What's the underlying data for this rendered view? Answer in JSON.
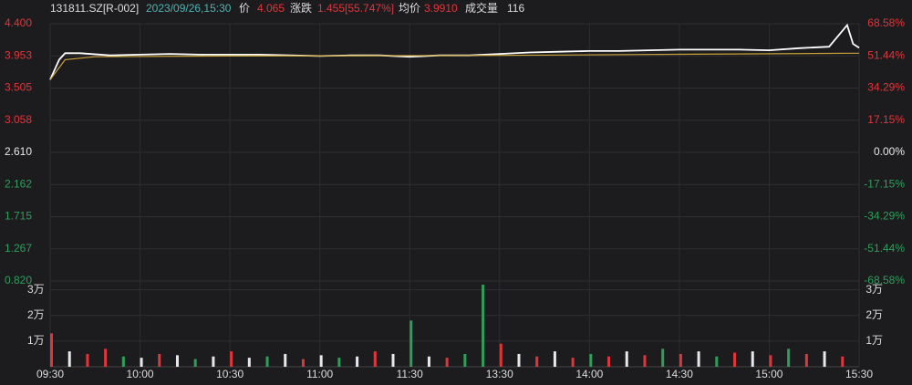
{
  "header": {
    "code": "131811.SZ[R-002]",
    "datetime": "2023/09/26,15:30",
    "price_label": "价",
    "price": "4.065",
    "change_label": "涨跌",
    "change": "1.455[55.747%]",
    "avg_label": "均价",
    "avg": "3.9910",
    "volume_label": "成交量",
    "volume": "116"
  },
  "chart_data": [
    {
      "type": "line",
      "xlim": [
        0,
        270
      ],
      "ylim": [
        0.82,
        4.4
      ],
      "yticks": [
        {
          "value": 4.4,
          "label": "4.400"
        },
        {
          "value": 3.953,
          "label": "3.953"
        },
        {
          "value": 3.505,
          "label": "3.505"
        },
        {
          "value": 3.058,
          "label": "3.058"
        },
        {
          "value": 2.61,
          "label": "2.610"
        },
        {
          "value": 2.162,
          "label": "2.162"
        },
        {
          "value": 1.715,
          "label": "1.715"
        },
        {
          "value": 1.267,
          "label": "1.267"
        },
        {
          "value": 0.82,
          "label": "0.820"
        }
      ],
      "y2lim": [
        -68.58,
        68.58
      ],
      "y2ticks": [
        {
          "value": 68.58,
          "label": "68.58%"
        },
        {
          "value": 51.44,
          "label": "51.44%"
        },
        {
          "value": 34.29,
          "label": "34.29%"
        },
        {
          "value": 17.15,
          "label": "17.15%"
        },
        {
          "value": 0,
          "label": "0.00%"
        },
        {
          "value": -17.15,
          "label": "-17.15%"
        },
        {
          "value": -34.29,
          "label": "-34.29%"
        },
        {
          "value": -51.44,
          "label": "-51.44%"
        },
        {
          "value": -68.58,
          "label": "-68.58%"
        }
      ],
      "grid": true,
      "series": [
        {
          "color": "#ffffff",
          "x": [
            0,
            3,
            5,
            10,
            20,
            30,
            40,
            50,
            60,
            70,
            80,
            90,
            100,
            110,
            120,
            130,
            140,
            150,
            160,
            170,
            180,
            190,
            200,
            210,
            220,
            230,
            240,
            250,
            260,
            266,
            268,
            270
          ],
          "values": [
            3.62,
            3.9,
            3.99,
            3.99,
            3.96,
            3.97,
            3.98,
            3.97,
            3.97,
            3.97,
            3.96,
            3.95,
            3.96,
            3.96,
            3.94,
            3.96,
            3.96,
            3.98,
            4.0,
            4.01,
            4.02,
            4.02,
            4.03,
            4.04,
            4.04,
            4.04,
            4.03,
            4.06,
            4.08,
            4.38,
            4.12,
            4.065
          ]
        },
        {
          "color": "#c9a23a",
          "x": [
            0,
            5,
            15,
            60,
            150,
            230,
            270
          ],
          "values": [
            3.62,
            3.9,
            3.94,
            3.95,
            3.96,
            3.98,
            3.99
          ]
        }
      ]
    },
    {
      "type": "bar",
      "xlim": [
        0,
        270
      ],
      "xticks": [
        {
          "value": 0,
          "label": "09:30"
        },
        {
          "value": 30,
          "label": "10:00"
        },
        {
          "value": 60,
          "label": "10:30"
        },
        {
          "value": 90,
          "label": "11:00"
        },
        {
          "value": 120,
          "label": "11:30"
        },
        {
          "value": 150,
          "label": "13:30"
        },
        {
          "value": 180,
          "label": "14:00"
        },
        {
          "value": 210,
          "label": "14:30"
        },
        {
          "value": 240,
          "label": "15:00"
        },
        {
          "value": 270,
          "label": "15:30"
        }
      ],
      "ylim": [
        0,
        32000
      ],
      "yticks": [
        {
          "value": 30000,
          "label": "3万"
        },
        {
          "value": 20000,
          "label": "2万"
        },
        {
          "value": 10000,
          "label": "1万"
        }
      ],
      "x": [
        0,
        6,
        12,
        18,
        24,
        30,
        36,
        42,
        48,
        54,
        60,
        66,
        72,
        78,
        84,
        90,
        96,
        102,
        108,
        114,
        120,
        126,
        132,
        138,
        144,
        150,
        156,
        162,
        168,
        174,
        180,
        186,
        192,
        198,
        204,
        210,
        216,
        222,
        228,
        234,
        240,
        246,
        252,
        258,
        264
      ],
      "values": [
        13000,
        6000,
        5000,
        7000,
        4000,
        3500,
        5000,
        4500,
        3000,
        4000,
        6000,
        3500,
        4000,
        5000,
        3000,
        4500,
        3500,
        4000,
        6000,
        5000,
        18000,
        4000,
        3500,
        5000,
        32000,
        9000,
        5000,
        4000,
        6000,
        3500,
        5000,
        4000,
        6000,
        4500,
        7000,
        5000,
        6000,
        4000,
        5500,
        6000,
        4500,
        7000,
        5000,
        6000,
        4000
      ],
      "colors": [
        "#e0353b",
        "#e8e8e8",
        "#e0353b",
        "#e0353b",
        "#2f9e5b",
        "#e8e8e8",
        "#e0353b",
        "#e8e8e8",
        "#2f9e5b",
        "#e8e8e8",
        "#e0353b",
        "#e8e8e8",
        "#2f9e5b",
        "#e8e8e8",
        "#e0353b",
        "#e8e8e8",
        "#2f9e5b",
        "#e8e8e8",
        "#e0353b",
        "#e8e8e8",
        "#2f9e5b",
        "#e8e8e8",
        "#e0353b",
        "#2f9e5b",
        "#2f9e5b",
        "#e0353b",
        "#e8e8e8",
        "#e0353b",
        "#e8e8e8",
        "#e0353b",
        "#2f9e5b",
        "#e0353b",
        "#e8e8e8",
        "#e0353b",
        "#2f9e5b",
        "#e0353b",
        "#e8e8e8",
        "#2f9e5b",
        "#e0353b",
        "#e8e8e8",
        "#e0353b",
        "#2f9e5b",
        "#e0353b",
        "#e8e8e8",
        "#e0353b"
      ]
    }
  ]
}
